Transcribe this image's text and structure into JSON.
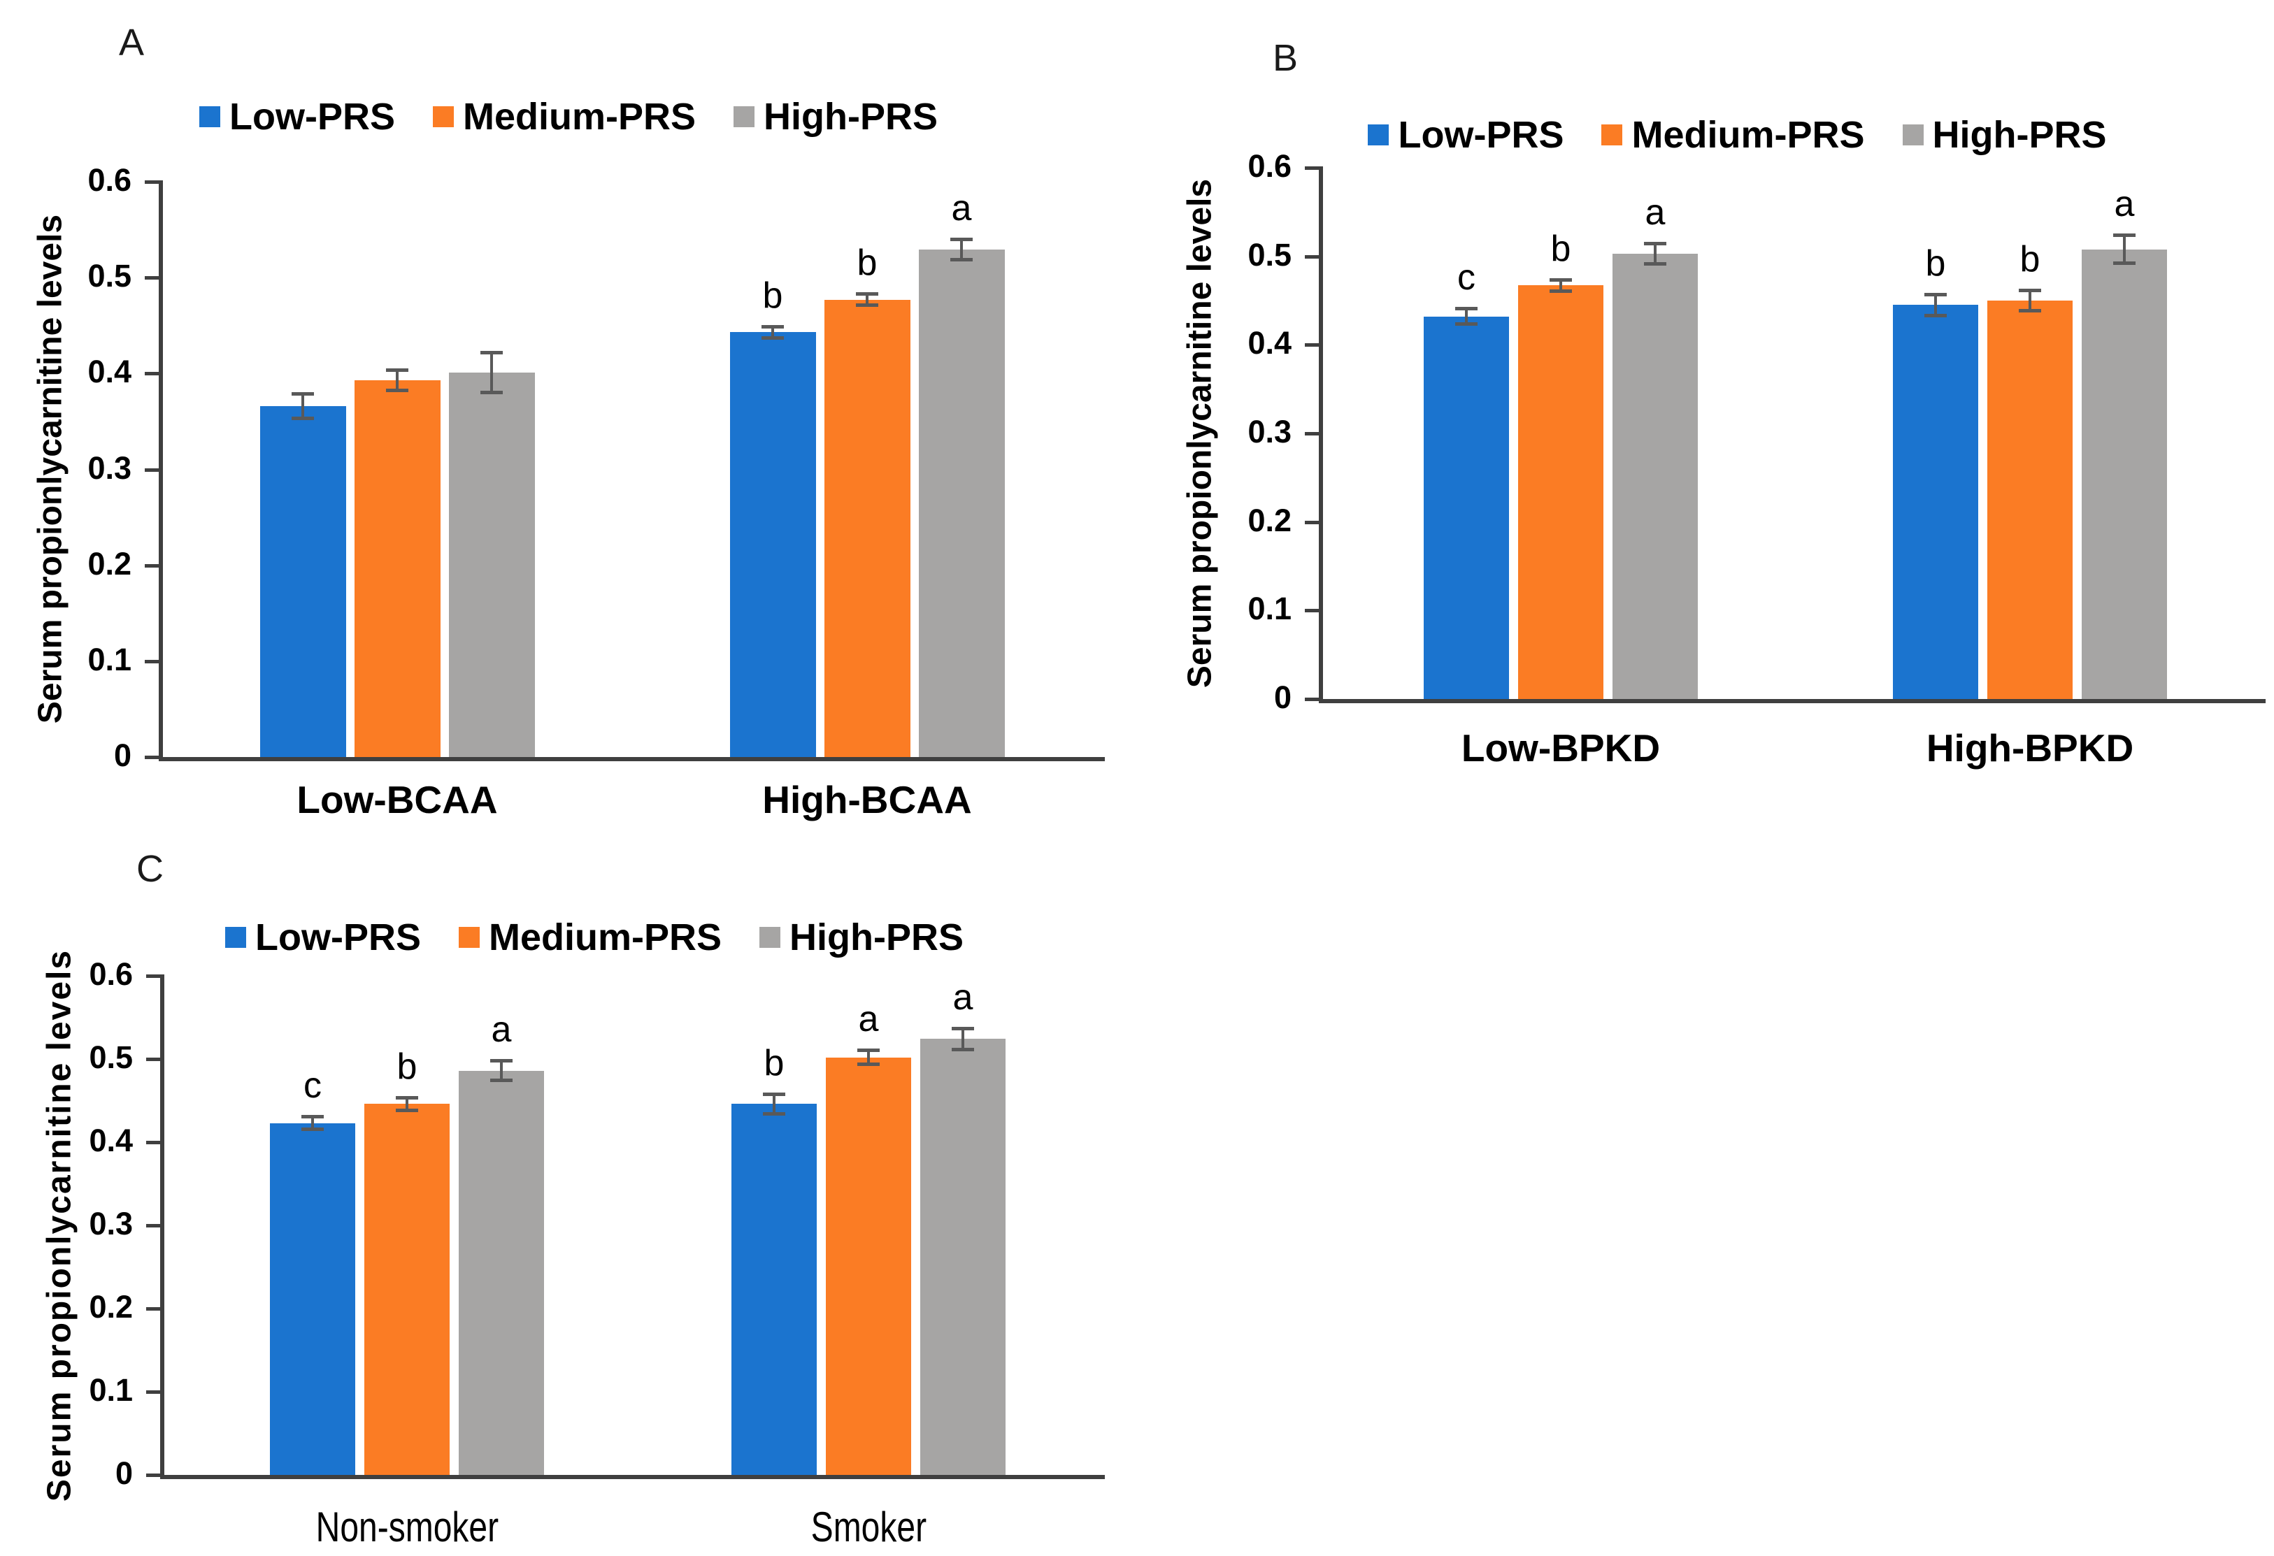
{
  "figure": {
    "background": "#ffffff",
    "axis_color": "#3f3f3f",
    "error_bar_color": "#595959"
  },
  "chart_data": [
    {
      "type": "bar",
      "panel": "A",
      "title": "",
      "ylabel": "Serum propionlycarnitine levels",
      "xlabel": "",
      "ylim": [
        0,
        0.6
      ],
      "ytick_values": [
        0,
        0.1,
        0.2,
        0.3,
        0.4,
        0.5,
        0.6
      ],
      "ytick_labels": [
        "0",
        "0.1",
        "0.2",
        "0.3",
        "0.4",
        "0.5",
        "0.6"
      ],
      "grid": false,
      "legend_position": "top",
      "categories": [
        "Low-BCAA",
        "High-BCAA"
      ],
      "series": [
        {
          "name": "Low-PRS",
          "color": "#1b74cf",
          "values": [
            0.366,
            0.443
          ],
          "errors": [
            0.013,
            0.006
          ],
          "letters": [
            "",
            "b"
          ]
        },
        {
          "name": "Medium-PRS",
          "color": "#fb7c24",
          "values": [
            0.393,
            0.477
          ],
          "errors": [
            0.011,
            0.006
          ],
          "letters": [
            "",
            "b"
          ]
        },
        {
          "name": "High-PRS",
          "color": "#a6a5a4",
          "values": [
            0.401,
            0.529
          ],
          "errors": [
            0.021,
            0.011
          ],
          "letters": [
            "",
            "a"
          ]
        }
      ]
    },
    {
      "type": "bar",
      "panel": "B",
      "title": "",
      "ylabel": "Serum propionlycarnitine levels",
      "xlabel": "",
      "ylim": [
        0,
        0.6
      ],
      "ytick_values": [
        0,
        0.1,
        0.2,
        0.3,
        0.4,
        0.5,
        0.6
      ],
      "ytick_labels": [
        "0",
        "0.1",
        "0.2",
        "0.3",
        "0.4",
        "0.5",
        "0.6"
      ],
      "grid": false,
      "legend_position": "top",
      "categories": [
        "Low-BPKD",
        "High-BPKD"
      ],
      "series": [
        {
          "name": "Low-PRS",
          "color": "#1b74cf",
          "values": [
            0.432,
            0.445
          ],
          "errors": [
            0.009,
            0.012
          ],
          "letters": [
            "c",
            "b"
          ]
        },
        {
          "name": "Medium-PRS",
          "color": "#fb7c24",
          "values": [
            0.467,
            0.45
          ],
          "errors": [
            0.007,
            0.012
          ],
          "letters": [
            "b",
            "b"
          ]
        },
        {
          "name": "High-PRS",
          "color": "#a6a5a4",
          "values": [
            0.503,
            0.508
          ],
          "errors": [
            0.012,
            0.016
          ],
          "letters": [
            "a",
            "a"
          ]
        }
      ]
    },
    {
      "type": "bar",
      "panel": "C",
      "title": "",
      "ylabel": "Serum propionlycarnitine levels",
      "xlabel": "",
      "ylim": [
        0,
        0.6
      ],
      "ytick_values": [
        0,
        0.1,
        0.2,
        0.3,
        0.4,
        0.5,
        0.6
      ],
      "ytick_labels": [
        "0",
        "0.1",
        "0.2",
        "0.3",
        "0.4",
        "0.5",
        "0.6"
      ],
      "grid": false,
      "legend_position": "top",
      "categories": [
        "Non-smoker",
        "Smoker"
      ],
      "series": [
        {
          "name": "Low-PRS",
          "color": "#1b74cf",
          "values": [
            0.423,
            0.446
          ],
          "errors": [
            0.008,
            0.012
          ],
          "letters": [
            "c",
            "b"
          ]
        },
        {
          "name": "Medium-PRS",
          "color": "#fb7c24",
          "values": [
            0.446,
            0.502
          ],
          "errors": [
            0.008,
            0.009
          ],
          "letters": [
            "b",
            "a"
          ]
        },
        {
          "name": "High-PRS",
          "color": "#a6a5a4",
          "values": [
            0.486,
            0.524
          ],
          "errors": [
            0.012,
            0.013
          ],
          "letters": [
            "a",
            "a"
          ]
        }
      ]
    }
  ]
}
